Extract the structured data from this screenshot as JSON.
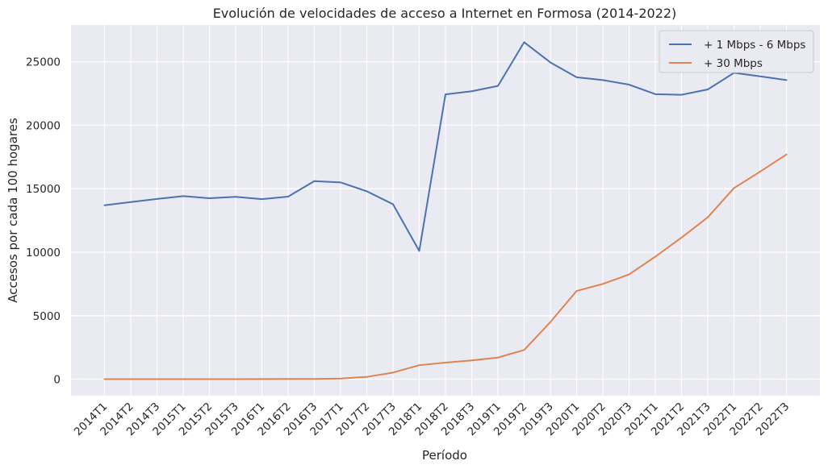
{
  "chart_data": {
    "type": "line",
    "title": "Evolución de velocidades de acceso a Internet en Formosa (2014-2022)",
    "xlabel": "Período",
    "ylabel": "Accesos por cada 100 hogares",
    "categories": [
      "2014T1",
      "2014T2",
      "2014T3",
      "2015T1",
      "2015T2",
      "2015T3",
      "2016T1",
      "2016T2",
      "2016T3",
      "2017T1",
      "2017T2",
      "2017T3",
      "2018T1",
      "2018T2",
      "2018T3",
      "2019T1",
      "2019T2",
      "2019T3",
      "2020T1",
      "2020T2",
      "2020T3",
      "2021T1",
      "2021T2",
      "2021T3",
      "2022T1",
      "2022T2",
      "2022T3"
    ],
    "yticks": [
      0,
      5000,
      10000,
      15000,
      20000,
      25000
    ],
    "ylim": [
      -1300,
      27900
    ],
    "grid": true,
    "legend_position": "top-right",
    "background": "#eaeaf2",
    "series": [
      {
        "name": "+ 1 Mbps - 6 Mbps",
        "color": "#4c72b0",
        "values": [
          13700,
          13950,
          14200,
          14420,
          14250,
          14360,
          14180,
          14380,
          15600,
          15500,
          14800,
          13780,
          10100,
          22430,
          22680,
          23100,
          26540,
          24950,
          23780,
          23560,
          23200,
          22450,
          22400,
          22820,
          24130,
          23850,
          23560
        ]
      },
      {
        "name": "+ 30 Mbps",
        "color": "#dd8452",
        "values": [
          0,
          0,
          0,
          0,
          0,
          0,
          10,
          20,
          20,
          50,
          180,
          520,
          1100,
          1300,
          1480,
          1700,
          2300,
          4500,
          6950,
          7500,
          8250,
          9650,
          11150,
          12750,
          15050,
          16350,
          17700
        ]
      }
    ]
  }
}
